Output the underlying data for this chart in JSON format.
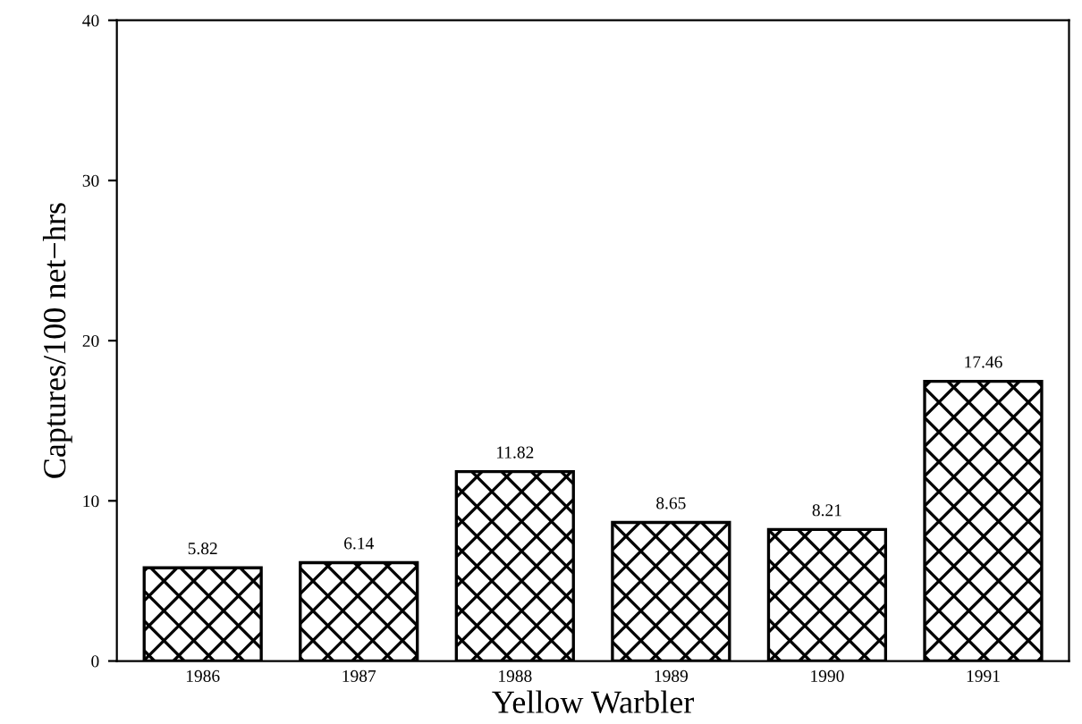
{
  "chart_data": {
    "type": "bar",
    "xlabel": "Yellow Warbler",
    "ylabel": "Captures/100 net−hrs",
    "categories": [
      "1986",
      "1987",
      "1988",
      "1989",
      "1990",
      "1991"
    ],
    "values": [
      5.82,
      6.14,
      11.82,
      8.65,
      8.21,
      17.46
    ],
    "value_labels": [
      "5.82",
      "6.14",
      "11.82",
      "8.65",
      "8.21",
      "17.46"
    ],
    "color": "#000000",
    "ylim": [
      0,
      40
    ],
    "yticks": [
      0,
      10,
      20,
      30,
      40
    ],
    "grid": false,
    "legend": false
  }
}
